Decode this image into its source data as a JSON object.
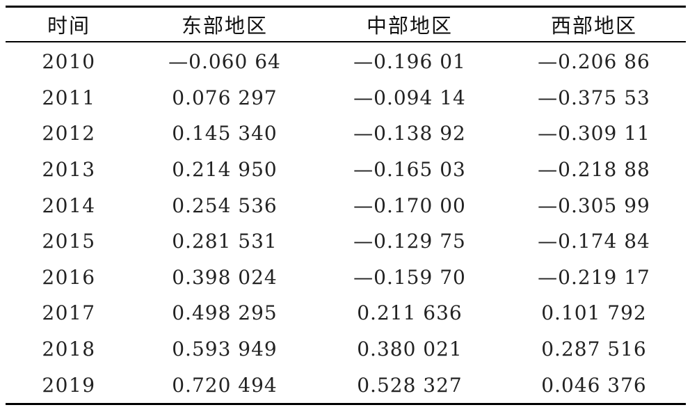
{
  "table": {
    "headers": [
      "时间",
      "东部地区",
      "中部地区",
      "西部地区"
    ],
    "rows": [
      {
        "year": "2010",
        "east": "—0.060 64",
        "central": "—0.196 01",
        "west": "—0.206 86"
      },
      {
        "year": "2011",
        "east": "0.076 297",
        "central": "—0.094 14",
        "west": "—0.375 53"
      },
      {
        "year": "2012",
        "east": "0.145 340",
        "central": "—0.138 92",
        "west": "—0.309 11"
      },
      {
        "year": "2013",
        "east": "0.214 950",
        "central": "—0.165 03",
        "west": "—0.218 88"
      },
      {
        "year": "2014",
        "east": "0.254 536",
        "central": "—0.170 00",
        "west": "—0.305 99"
      },
      {
        "year": "2015",
        "east": "0.281 531",
        "central": "—0.129 75",
        "west": "—0.174 84"
      },
      {
        "year": "2016",
        "east": "0.398 024",
        "central": "—0.159 70",
        "west": "—0.219 17"
      },
      {
        "year": "2017",
        "east": "0.498 295",
        "central": "0.211 636",
        "west": "0.101 792"
      },
      {
        "year": "2018",
        "east": "0.593 949",
        "central": "0.380 021",
        "west": "0.287 516"
      },
      {
        "year": "2019",
        "east": "0.720 494",
        "central": "0.528 327",
        "west": "0.046 376"
      }
    ]
  }
}
